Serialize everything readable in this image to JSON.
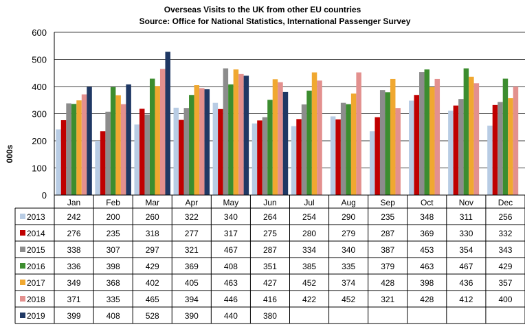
{
  "chart_data": {
    "type": "bar",
    "title": "Overseas Visits to the UK from other EU countries",
    "subtitle": "Source: Office for National Statistics, International Passenger Survey",
    "ylabel": "000s",
    "xlabel": "",
    "ylim": [
      0,
      600
    ],
    "yticks": [
      0,
      100,
      200,
      300,
      400,
      500,
      600
    ],
    "grid": true,
    "legend": "data-table-left",
    "categories": [
      "Jan",
      "Feb",
      "Mar",
      "Apr",
      "May",
      "Jun",
      "Jul",
      "Aug",
      "Sep",
      "Oct",
      "Nov",
      "Dec"
    ],
    "series": [
      {
        "name": "2013",
        "color": "#B8CCE4",
        "values": [
          242,
          200,
          260,
          322,
          340,
          264,
          254,
          290,
          235,
          348,
          311,
          256
        ]
      },
      {
        "name": "2014",
        "color": "#C00000",
        "values": [
          276,
          235,
          318,
          277,
          317,
          275,
          280,
          279,
          287,
          369,
          330,
          332
        ]
      },
      {
        "name": "2015",
        "color": "#8C8C8C",
        "values": [
          338,
          307,
          297,
          321,
          467,
          287,
          334,
          340,
          387,
          453,
          354,
          343
        ]
      },
      {
        "name": "2016",
        "color": "#3C8D2F",
        "values": [
          336,
          398,
          429,
          369,
          408,
          351,
          385,
          335,
          379,
          463,
          467,
          429
        ]
      },
      {
        "name": "2017",
        "color": "#F0A830",
        "values": [
          349,
          368,
          402,
          405,
          463,
          427,
          452,
          374,
          428,
          398,
          436,
          357
        ]
      },
      {
        "name": "2018",
        "color": "#E3908E",
        "values": [
          371,
          335,
          465,
          394,
          446,
          416,
          422,
          452,
          321,
          428,
          412,
          400
        ]
      },
      {
        "name": "2019",
        "color": "#1F3864",
        "values": [
          399,
          408,
          528,
          390,
          440,
          380,
          null,
          null,
          null,
          null,
          null,
          null
        ]
      }
    ]
  }
}
